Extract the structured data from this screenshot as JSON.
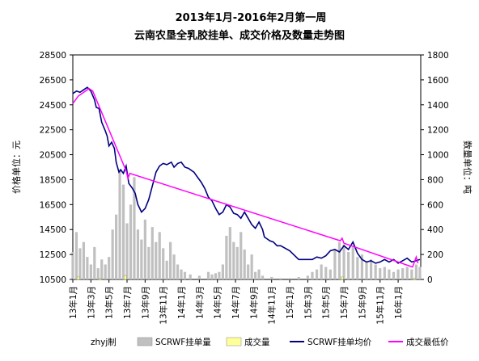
{
  "chart_data": {
    "type": "line",
    "title": "2013年1月-2016年2月第一周",
    "subtitle": "云南农垦全乳胶挂单、成交价格及数量走势图",
    "ylabel_left": "价格单位：元",
    "ylabel_right": "数量单位：吨",
    "ylim_left": [
      10500,
      28500
    ],
    "ylim_right": [
      0,
      1800
    ],
    "yticks_left": [
      "28500",
      "26500",
      "24500",
      "22500",
      "20500",
      "18500",
      "16500",
      "14500",
      "12500",
      "10500"
    ],
    "yticks_right": [
      "1800",
      "1600",
      "1400",
      "1200",
      "1000",
      "800",
      "600",
      "400",
      "200",
      "0"
    ],
    "x_range_months": [
      0,
      38.5
    ],
    "x_tick_labels": [
      "13年1月",
      "13年3月",
      "13年5月",
      "13年7月",
      "13年9月",
      "13年11月",
      "14年1月",
      "14年3月",
      "14年5月",
      "14年7月",
      "14年9月",
      "14年11月",
      "15年1月",
      "15年3月",
      "15年5月",
      "15年7月",
      "15年9月",
      "15年11月",
      "16年1月"
    ],
    "grid": false,
    "legend_position": "bottom",
    "credit": "zhyj制",
    "legend": [
      {
        "name": "SCRWF挂单量",
        "color": "#c0c0c0",
        "type": "bar"
      },
      {
        "name": "成交量",
        "color": "#ffff99",
        "type": "bar"
      },
      {
        "name": "SCRWF挂单均价",
        "color": "#000080",
        "type": "line"
      },
      {
        "name": "成交最低价",
        "color": "#ff00ff",
        "type": "line"
      }
    ],
    "series": [
      {
        "name": "SCRWF挂单均价",
        "axis": "left",
        "color": "#000080",
        "x": [
          0,
          0.4,
          0.8,
          1.2,
          1.6,
          2.0,
          2.4,
          2.6,
          2.9,
          3.2,
          3.6,
          3.8,
          4.0,
          4.3,
          4.6,
          4.8,
          5.1,
          5.3,
          5.6,
          5.9,
          6.2,
          6.6,
          6.9,
          7.2,
          7.6,
          8.0,
          8.4,
          8.8,
          9.2,
          9.6,
          10.0,
          10.4,
          10.9,
          11.2,
          11.6,
          12.0,
          12.4,
          12.8,
          13.4,
          13.8,
          14.2,
          14.6,
          15.0,
          15.4,
          15.8,
          16.2,
          16.6,
          17.0,
          17.4,
          17.8,
          18.2,
          18.6,
          19.0,
          19.4,
          19.8,
          20.2,
          20.6,
          21.0,
          21.2,
          21.4,
          21.8,
          22.2,
          22.6,
          23.0,
          24.0,
          25.0,
          26.0,
          26.5,
          27.0,
          27.5,
          28.0,
          28.5,
          29.0,
          29.5,
          30.0,
          30.5,
          31.0,
          31.5,
          32.0,
          32.5,
          33.0,
          33.5,
          34.0,
          34.5,
          35.0,
          35.5,
          36.0,
          36.5,
          37.0,
          37.5,
          38.0,
          38.4
        ],
        "y": [
          25400,
          25600,
          25500,
          25700,
          25900,
          25600,
          24900,
          24300,
          24200,
          23100,
          22400,
          22000,
          21200,
          21500,
          21000,
          19900,
          19100,
          19300,
          19000,
          19600,
          18200,
          17800,
          17400,
          16500,
          15900,
          16200,
          16900,
          18000,
          19100,
          19600,
          19800,
          19700,
          19900,
          19500,
          19800,
          19900,
          19500,
          19400,
          19100,
          18700,
          18300,
          17800,
          17100,
          16800,
          16200,
          15700,
          15900,
          16500,
          16300,
          15800,
          15700,
          15400,
          15900,
          15400,
          14900,
          14600,
          15100,
          14500,
          13900,
          13800,
          13600,
          13500,
          13200,
          13200,
          12800,
          12100,
          12100,
          12100,
          12300,
          12200,
          12400,
          12800,
          12900,
          12700,
          13200,
          12900,
          13500,
          12600,
          12100,
          11900,
          12000,
          11800,
          11900,
          12100,
          11900,
          12100,
          11800,
          12000,
          12200,
          11900,
          12000,
          12100
        ]
      },
      {
        "name": "成交最低价",
        "axis": "left",
        "color": "#ff00ff",
        "x": [
          0,
          0.3,
          0.6,
          1.0,
          1.4,
          1.8,
          2.2,
          5.9,
          6.1,
          6.3,
          29.6,
          29.8,
          30.0,
          37.6,
          37.8,
          38.0,
          38.2
        ],
        "y": [
          24600,
          24900,
          25200,
          25400,
          25600,
          25800,
          25600,
          19200,
          18600,
          19000,
          13600,
          13800,
          13400,
          11500,
          11900,
          12300,
          11800
        ]
      },
      {
        "name": "SCRWF挂单量",
        "axis": "right",
        "color": "#c0c0c0",
        "x": [
          0,
          0.4,
          0.8,
          1.2,
          1.6,
          2.0,
          2.4,
          2.8,
          3.2,
          3.6,
          4.0,
          4.4,
          4.8,
          5.2,
          5.6,
          6.0,
          6.4,
          6.8,
          7.2,
          7.6,
          8.0,
          8.4,
          8.8,
          9.2,
          9.6,
          10.0,
          10.4,
          10.8,
          11.2,
          11.6,
          12.0,
          12.4,
          13.0,
          14.0,
          15.0,
          15.4,
          15.8,
          16.2,
          16.6,
          17.0,
          17.4,
          17.8,
          18.2,
          18.6,
          19.0,
          19.4,
          19.8,
          20.2,
          20.6,
          21.0,
          22.0,
          23.0,
          24.0,
          25.0,
          26.0,
          26.5,
          27.0,
          27.5,
          28.0,
          28.5,
          29.0,
          29.5,
          30.0,
          30.5,
          31.0,
          31.5,
          32.0,
          32.5,
          33.0,
          33.5,
          34.0,
          34.5,
          35.0,
          35.5,
          36.0,
          36.5,
          37.0,
          37.5,
          38.0,
          38.4
        ],
        "y": [
          220,
          380,
          250,
          300,
          180,
          120,
          260,
          90,
          160,
          120,
          180,
          400,
          520,
          880,
          760,
          450,
          600,
          820,
          400,
          320,
          480,
          260,
          420,
          300,
          380,
          250,
          150,
          300,
          200,
          120,
          80,
          60,
          40,
          30,
          60,
          40,
          50,
          60,
          120,
          350,
          420,
          300,
          260,
          380,
          240,
          120,
          200,
          60,
          80,
          30,
          20,
          10,
          10,
          20,
          30,
          60,
          80,
          120,
          100,
          80,
          240,
          300,
          280,
          220,
          260,
          180,
          200,
          140,
          160,
          120,
          90,
          100,
          80,
          60,
          80,
          90,
          100,
          80,
          120,
          100
        ]
      },
      {
        "name": "成交量",
        "axis": "right",
        "color": "#ffff99",
        "x": [
          0.6,
          3.0,
          5.8,
          29.8,
          37.8
        ],
        "y": [
          20,
          10,
          30,
          20,
          10
        ]
      }
    ]
  }
}
